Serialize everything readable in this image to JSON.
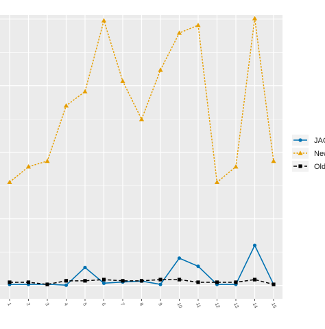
{
  "chart_data": {
    "type": "line",
    "categories": [
      "1",
      "2",
      "3",
      "4",
      "5",
      "6",
      "7",
      "8",
      "9",
      "10",
      "11",
      "12",
      "13",
      "14",
      "15"
    ],
    "series": [
      {
        "name": "JAC",
        "color": "#0072B2",
        "marker": "circle",
        "line": "solid",
        "values": [
          0.8,
          0.8,
          0.9,
          0.2,
          13.5,
          1.7,
          2.6,
          3.3,
          0.8,
          20.5,
          14.4,
          0.8,
          0.8,
          30.1,
          0.8
        ]
      },
      {
        "name": "New",
        "color": "#E69F00",
        "marker": "triangle",
        "line": "dotted",
        "values": [
          77.5,
          89.2,
          93.4,
          135.0,
          145.6,
          198.9,
          153.4,
          124.8,
          161.8,
          189.6,
          195.4,
          77.5,
          89.2,
          200.5,
          93.4
        ]
      },
      {
        "name": "Old",
        "color": "#000000",
        "marker": "square",
        "line": "dashed",
        "values": [
          2.4,
          2.4,
          0.8,
          3.5,
          3.5,
          4.4,
          3.5,
          3.5,
          4.4,
          4.4,
          2.4,
          2.4,
          2.4,
          4.4,
          0.8
        ]
      }
    ],
    "legend": {
      "position": "right",
      "labels": [
        "JAC",
        "New",
        "Old"
      ]
    },
    "grid": true,
    "panel_background": "#EBEBEB",
    "ylim": [
      -10,
      203
    ]
  }
}
